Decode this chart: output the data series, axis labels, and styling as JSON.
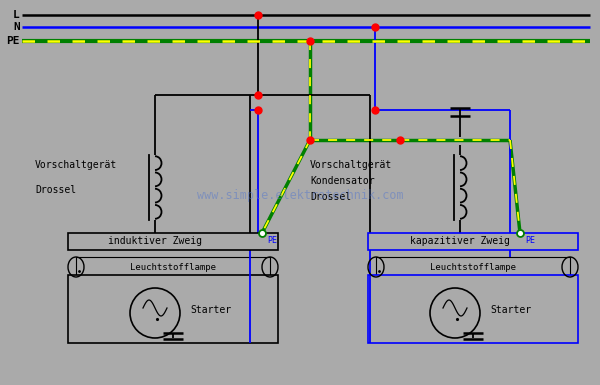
{
  "bg_color": "#aaaaaa",
  "watermark": "www.simple.elektrotechnik.com",
  "wire_black": "#000000",
  "wire_blue": "#0000ff",
  "wire_green": "#008000",
  "wire_yellow": "#ffff00",
  "dot_red": "#ff0000",
  "L_label": "L",
  "N_label": "N",
  "PE_label": "PE",
  "left_label1": "Vorschaltgerät",
  "left_label2": "Drossel",
  "right_label1": "Vorschaltgerät",
  "right_label2": "Kondensator",
  "right_label3": "Drossel",
  "left_box_label": "induktiver Zweig",
  "right_box_label": "kapazitiver Zweig",
  "lamp_label": "Leuchtstofflampe",
  "starter_label": "Starter",
  "pe_label": "PE"
}
